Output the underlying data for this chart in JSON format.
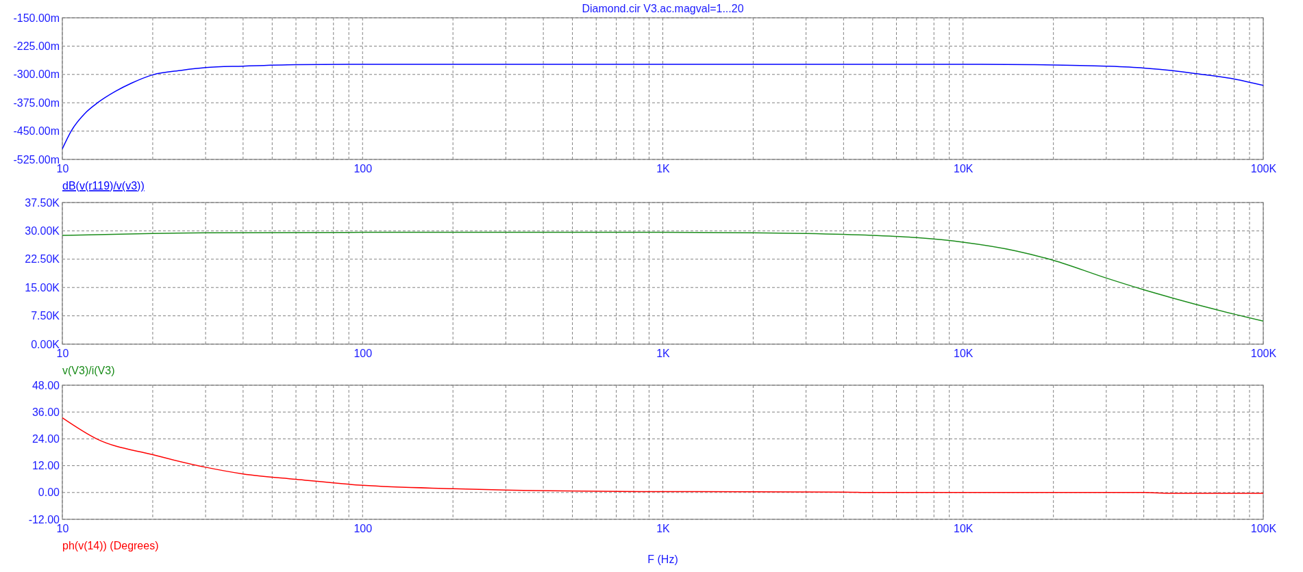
{
  "chart_data": [
    {
      "type": "line",
      "title": "Diamond.cir V3.ac.magval=1...20",
      "log": "x",
      "grid": true,
      "legend": "bottom left",
      "line_style": "solid",
      "marker": "none",
      "xlim": [
        10,
        100000
      ],
      "xticks": [
        {
          "value": 10,
          "label": "10"
        },
        {
          "value": 20,
          "label": null
        },
        {
          "value": 30,
          "label": null
        },
        {
          "value": 40,
          "label": null
        },
        {
          "value": 50,
          "label": null
        },
        {
          "value": 60,
          "label": null
        },
        {
          "value": 70,
          "label": null
        },
        {
          "value": 80,
          "label": null
        },
        {
          "value": 90,
          "label": null
        },
        {
          "value": 100,
          "label": "100"
        },
        {
          "value": 200,
          "label": null
        },
        {
          "value": 300,
          "label": null
        },
        {
          "value": 400,
          "label": null
        },
        {
          "value": 500,
          "label": null
        },
        {
          "value": 600,
          "label": null
        },
        {
          "value": 700,
          "label": null
        },
        {
          "value": 800,
          "label": null
        },
        {
          "value": 900,
          "label": null
        },
        {
          "value": 1000,
          "label": "1K"
        },
        {
          "value": 2000,
          "label": null
        },
        {
          "value": 3000,
          "label": null
        },
        {
          "value": 4000,
          "label": null
        },
        {
          "value": 5000,
          "label": null
        },
        {
          "value": 6000,
          "label": null
        },
        {
          "value": 7000,
          "label": null
        },
        {
          "value": 8000,
          "label": null
        },
        {
          "value": 9000,
          "label": null
        },
        {
          "value": 10000,
          "label": "10K"
        },
        {
          "value": 20000,
          "label": null
        },
        {
          "value": 30000,
          "label": null
        },
        {
          "value": 40000,
          "label": null
        },
        {
          "value": 50000,
          "label": null
        },
        {
          "value": 60000,
          "label": null
        },
        {
          "value": 70000,
          "label": null
        },
        {
          "value": 80000,
          "label": null
        },
        {
          "value": 90000,
          "label": null
        },
        {
          "value": 100000,
          "label": "100K"
        }
      ],
      "ylim": [
        -525,
        -150
      ],
      "yticks": [
        {
          "value": -525,
          "label": "-525.00m"
        },
        {
          "value": -450,
          "label": "-450.00m"
        },
        {
          "value": -375,
          "label": "-375.00m"
        },
        {
          "value": -300,
          "label": "-300.00m"
        },
        {
          "value": -225,
          "label": "-225.00m"
        },
        {
          "value": -150,
          "label": "-150.00m"
        }
      ],
      "series": [
        {
          "name": "dB(v(r119)/v(v3))",
          "color": "#0000ff",
          "x": [
            10,
            10.7,
            12,
            13.1,
            15,
            17,
            20,
            25,
            30,
            40,
            60,
            100,
            1000,
            10000,
            17000,
            30000,
            40000,
            50000,
            60000,
            80000,
            100000
          ],
          "values": [
            -497,
            -450,
            -400,
            -375,
            -345,
            -323,
            -301,
            -289,
            -282,
            -278,
            -274,
            -273,
            -273,
            -273,
            -274,
            -278,
            -283,
            -290,
            -298,
            -312,
            -329
          ]
        }
      ]
    },
    {
      "type": "line",
      "log": "x",
      "grid": true,
      "legend": "bottom left",
      "line_style": "solid",
      "marker": "none",
      "xlim": [
        10,
        100000
      ],
      "xticks": [
        {
          "value": 10,
          "label": "10"
        },
        {
          "value": 20,
          "label": null
        },
        {
          "value": 30,
          "label": null
        },
        {
          "value": 40,
          "label": null
        },
        {
          "value": 50,
          "label": null
        },
        {
          "value": 60,
          "label": null
        },
        {
          "value": 70,
          "label": null
        },
        {
          "value": 80,
          "label": null
        },
        {
          "value": 90,
          "label": null
        },
        {
          "value": 100,
          "label": "100"
        },
        {
          "value": 200,
          "label": null
        },
        {
          "value": 300,
          "label": null
        },
        {
          "value": 400,
          "label": null
        },
        {
          "value": 500,
          "label": null
        },
        {
          "value": 600,
          "label": null
        },
        {
          "value": 700,
          "label": null
        },
        {
          "value": 800,
          "label": null
        },
        {
          "value": 900,
          "label": null
        },
        {
          "value": 1000,
          "label": "1K"
        },
        {
          "value": 2000,
          "label": null
        },
        {
          "value": 3000,
          "label": null
        },
        {
          "value": 4000,
          "label": null
        },
        {
          "value": 5000,
          "label": null
        },
        {
          "value": 6000,
          "label": null
        },
        {
          "value": 7000,
          "label": null
        },
        {
          "value": 8000,
          "label": null
        },
        {
          "value": 9000,
          "label": null
        },
        {
          "value": 10000,
          "label": "10K"
        },
        {
          "value": 20000,
          "label": null
        },
        {
          "value": 30000,
          "label": null
        },
        {
          "value": 40000,
          "label": null
        },
        {
          "value": 50000,
          "label": null
        },
        {
          "value": 60000,
          "label": null
        },
        {
          "value": 70000,
          "label": null
        },
        {
          "value": 80000,
          "label": null
        },
        {
          "value": 90000,
          "label": null
        },
        {
          "value": 100000,
          "label": "100K"
        }
      ],
      "ylim": [
        0,
        37500
      ],
      "yticks": [
        {
          "value": 0,
          "label": "0.00K"
        },
        {
          "value": 7500,
          "label": "7.50K"
        },
        {
          "value": 15000,
          "label": "15.00K"
        },
        {
          "value": 22500,
          "label": "22.50K"
        },
        {
          "value": 30000,
          "label": "30.00K"
        },
        {
          "value": 37500,
          "label": "37.50K"
        }
      ],
      "series": [
        {
          "name": "v(V3)/i(V3)",
          "color": "#1a8c1a",
          "x": [
            10,
            20,
            30,
            100,
            1000,
            2000,
            3000,
            5000,
            7000,
            10000,
            15000,
            20000,
            30000,
            40000,
            50000,
            70000,
            100000
          ],
          "values": [
            28800,
            29300,
            29500,
            29600,
            29600,
            29500,
            29300,
            28800,
            28200,
            27000,
            24700,
            22200,
            17500,
            14400,
            12200,
            9100,
            6100
          ]
        }
      ]
    },
    {
      "type": "line",
      "log": "x",
      "grid": true,
      "legend": "bottom left",
      "line_style": "solid",
      "marker": "none",
      "xlabel": "F (Hz)",
      "xlim": [
        10,
        100000
      ],
      "xticks": [
        {
          "value": 10,
          "label": "10"
        },
        {
          "value": 20,
          "label": null
        },
        {
          "value": 30,
          "label": null
        },
        {
          "value": 40,
          "label": null
        },
        {
          "value": 50,
          "label": null
        },
        {
          "value": 60,
          "label": null
        },
        {
          "value": 70,
          "label": null
        },
        {
          "value": 80,
          "label": null
        },
        {
          "value": 90,
          "label": null
        },
        {
          "value": 100,
          "label": "100"
        },
        {
          "value": 200,
          "label": null
        },
        {
          "value": 300,
          "label": null
        },
        {
          "value": 400,
          "label": null
        },
        {
          "value": 500,
          "label": null
        },
        {
          "value": 600,
          "label": null
        },
        {
          "value": 700,
          "label": null
        },
        {
          "value": 800,
          "label": null
        },
        {
          "value": 900,
          "label": null
        },
        {
          "value": 1000,
          "label": "1K"
        },
        {
          "value": 2000,
          "label": null
        },
        {
          "value": 3000,
          "label": null
        },
        {
          "value": 4000,
          "label": null
        },
        {
          "value": 5000,
          "label": null
        },
        {
          "value": 6000,
          "label": null
        },
        {
          "value": 7000,
          "label": null
        },
        {
          "value": 8000,
          "label": null
        },
        {
          "value": 9000,
          "label": null
        },
        {
          "value": 10000,
          "label": "10K"
        },
        {
          "value": 20000,
          "label": null
        },
        {
          "value": 30000,
          "label": null
        },
        {
          "value": 40000,
          "label": null
        },
        {
          "value": 50000,
          "label": null
        },
        {
          "value": 60000,
          "label": null
        },
        {
          "value": 70000,
          "label": null
        },
        {
          "value": 80000,
          "label": null
        },
        {
          "value": 90000,
          "label": null
        },
        {
          "value": 100000,
          "label": "100K"
        }
      ],
      "ylim": [
        -12,
        48
      ],
      "yticks": [
        {
          "value": -12,
          "label": "-12.00"
        },
        {
          "value": 0,
          "label": "0.00"
        },
        {
          "value": 12,
          "label": "12.00"
        },
        {
          "value": 24,
          "label": "24.00"
        },
        {
          "value": 36,
          "label": "36.00"
        },
        {
          "value": 48,
          "label": "48.00"
        }
      ],
      "series": [
        {
          "name": "ph(v(14)) (Degrees)",
          "color": "#ff0000",
          "x": [
            10,
            13,
            20,
            30,
            40,
            60,
            100,
            200,
            300,
            1000,
            4000,
            5000,
            40000,
            50000,
            100000
          ],
          "values": [
            33.4,
            24,
            16.9,
            11.3,
            8.3,
            5.9,
            3.2,
            1.7,
            1.1,
            0.4,
            0.2,
            0,
            0,
            -0.4,
            -0.4
          ]
        }
      ]
    }
  ]
}
